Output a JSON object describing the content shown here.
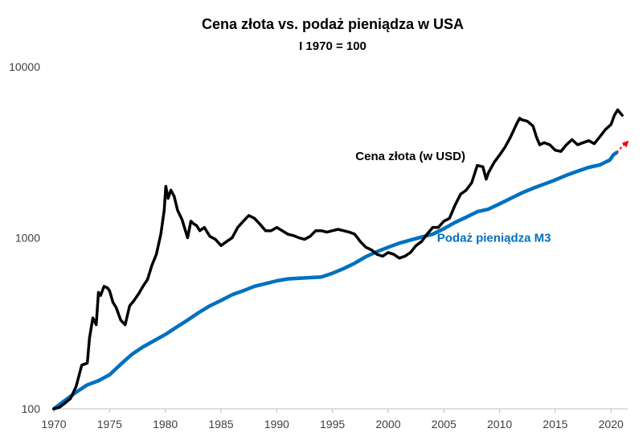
{
  "chart_data": {
    "type": "line",
    "title": "Cena złota vs. podaż pieniądza w USA",
    "subtitle": "I 1970 = 100",
    "xlabel": "",
    "ylabel": "",
    "y_scale": "log",
    "xlim": [
      1970,
      2021.5
    ],
    "ylim": [
      100,
      10000
    ],
    "grid": false,
    "legend": "none",
    "x_ticks": [
      1970,
      1975,
      1980,
      1985,
      1990,
      1995,
      2000,
      2005,
      2010,
      2015,
      2020
    ],
    "x_tick_labels": [
      "1970",
      "1975",
      "1980",
      "1985",
      "1990",
      "1995",
      "2000",
      "2005",
      "2010",
      "2015",
      "2020"
    ],
    "y_ticks": [
      100,
      1000,
      10000
    ],
    "y_tick_labels": [
      "100",
      "1000",
      "10000"
    ],
    "series": [
      {
        "name": "Cena złota (w USD)",
        "color": "#000000",
        "x": [
          1970.0,
          1970.5,
          1971.0,
          1971.5,
          1972.0,
          1972.5,
          1973.0,
          1973.2,
          1973.5,
          1973.8,
          1974.0,
          1974.2,
          1974.5,
          1974.8,
          1975.0,
          1975.3,
          1975.6,
          1976.0,
          1976.4,
          1976.8,
          1977.2,
          1977.6,
          1978.0,
          1978.4,
          1978.8,
          1979.2,
          1979.6,
          1979.9,
          1980.05,
          1980.25,
          1980.5,
          1980.8,
          1981.1,
          1981.5,
          1982.0,
          1982.3,
          1982.6,
          1982.8,
          1983.1,
          1983.5,
          1984.0,
          1984.5,
          1985.0,
          1985.5,
          1986.0,
          1986.5,
          1987.0,
          1987.5,
          1988.0,
          1988.5,
          1989.0,
          1989.5,
          1990.0,
          1990.5,
          1991.0,
          1991.5,
          1992.0,
          1992.5,
          1993.0,
          1993.5,
          1994.0,
          1994.5,
          1995.0,
          1995.5,
          1996.0,
          1996.5,
          1997.0,
          1997.5,
          1998.0,
          1998.5,
          1999.0,
          1999.5,
          2000.0,
          2000.5,
          2001.0,
          2001.5,
          2002.0,
          2002.5,
          2003.0,
          2003.5,
          2004.0,
          2004.5,
          2005.0,
          2005.5,
          2006.0,
          2006.5,
          2007.0,
          2007.5,
          2008.0,
          2008.5,
          2008.8,
          2009.0,
          2009.5,
          2010.0,
          2010.5,
          2011.0,
          2011.5,
          2011.8,
          2012.0,
          2012.5,
          2013.0,
          2013.3,
          2013.6,
          2014.0,
          2014.5,
          2015.0,
          2015.5,
          2016.0,
          2016.5,
          2017.0,
          2017.5,
          2018.0,
          2018.5,
          2019.0,
          2019.5,
          2020.0,
          2020.3,
          2020.6,
          2021.0
        ],
        "values": [
          100,
          102,
          108,
          115,
          135,
          180,
          185,
          260,
          340,
          310,
          480,
          460,
          520,
          510,
          490,
          420,
          390,
          330,
          310,
          400,
          430,
          470,
          520,
          570,
          690,
          800,
          1050,
          1450,
          2000,
          1700,
          1900,
          1750,
          1450,
          1280,
          1000,
          1250,
          1200,
          1180,
          1100,
          1150,
          1020,
          980,
          900,
          950,
          1000,
          1150,
          1250,
          1350,
          1300,
          1200,
          1100,
          1100,
          1150,
          1100,
          1050,
          1030,
          1000,
          980,
          1020,
          1100,
          1100,
          1080,
          1100,
          1120,
          1100,
          1080,
          1050,
          950,
          880,
          850,
          800,
          780,
          820,
          800,
          760,
          780,
          820,
          900,
          950,
          1050,
          1150,
          1150,
          1250,
          1300,
          1550,
          1800,
          1900,
          2100,
          2650,
          2600,
          2200,
          2400,
          2750,
          3050,
          3400,
          3900,
          4600,
          5000,
          4900,
          4800,
          4500,
          3900,
          3500,
          3600,
          3500,
          3250,
          3200,
          3500,
          3750,
          3500,
          3600,
          3700,
          3550,
          3900,
          4300,
          4600,
          5200,
          5600,
          5200
        ]
      },
      {
        "name": "Podaż pieniądza M3",
        "color": "#0070C0",
        "x": [
          1970,
          1971,
          1972,
          1973,
          1974,
          1975,
          1976,
          1977,
          1978,
          1979,
          1980,
          1981,
          1982,
          1983,
          1984,
          1985,
          1986,
          1987,
          1988,
          1989,
          1990,
          1991,
          1992,
          1993,
          1994,
          1995,
          1996,
          1997,
          1998,
          1999,
          2000,
          2001,
          2002,
          2003,
          2004,
          2005,
          2006,
          2007,
          2008,
          2009,
          2010,
          2011,
          2012,
          2013,
          2014,
          2015,
          2016,
          2017,
          2018,
          2019,
          2019.9,
          2020.2,
          2020.5
        ],
        "values": [
          100,
          112,
          125,
          138,
          146,
          158,
          182,
          208,
          230,
          250,
          272,
          300,
          330,
          365,
          400,
          430,
          465,
          490,
          520,
          540,
          560,
          575,
          580,
          585,
          590,
          620,
          660,
          710,
          775,
          830,
          880,
          930,
          970,
          1010,
          1050,
          1130,
          1230,
          1320,
          1420,
          1470,
          1580,
          1700,
          1830,
          1950,
          2060,
          2180,
          2320,
          2450,
          2580,
          2670,
          2850,
          3050,
          3150
        ]
      }
    ],
    "annotations": [
      {
        "text": "Cena złota (w USD)",
        "x": 2002,
        "y": 3000,
        "color": "#000000"
      },
      {
        "text": "Podaż pieniądza M3",
        "x": 2009.5,
        "y": 1000,
        "color": "#0070C0"
      }
    ],
    "extrapolation_arrow": {
      "from_x": 2020.5,
      "from_y": 3150,
      "to_x": 2021.6,
      "to_y": 3700,
      "color": "#FF0000"
    }
  }
}
